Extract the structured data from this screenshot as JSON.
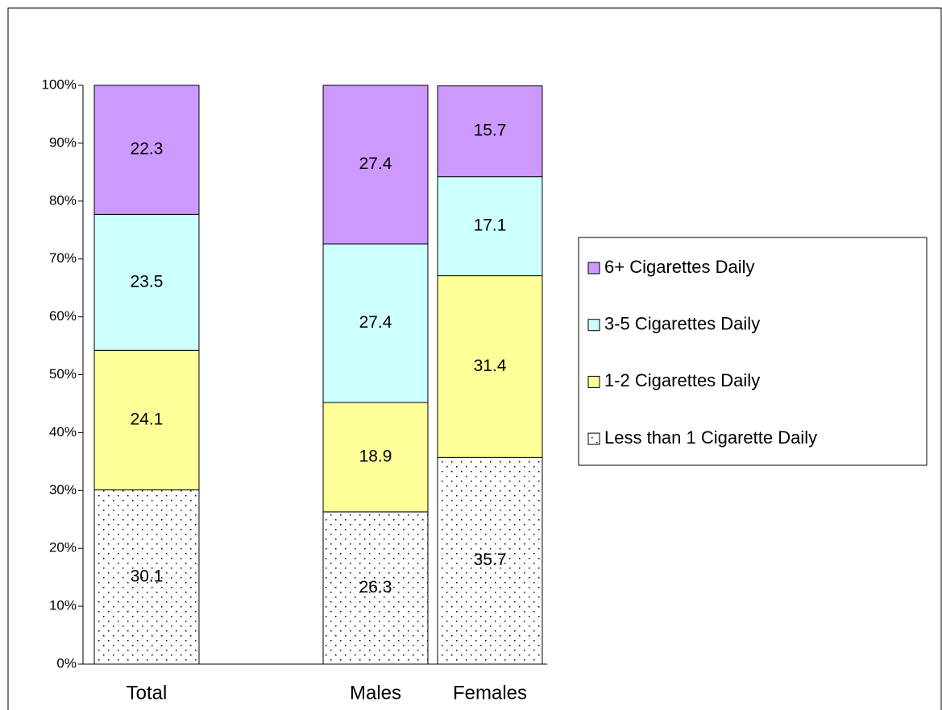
{
  "chart_data": {
    "type": "stacked_bar",
    "categories": [
      "Total",
      null,
      "Males",
      "Females"
    ],
    "series": [
      {
        "name": "Less than 1 Cigarette Daily",
        "color": "#ffffff",
        "pattern": "dots",
        "values": [
          30.1,
          null,
          26.3,
          35.7
        ]
      },
      {
        "name": "1-2 Cigarettes Daily",
        "color": "#ffff99",
        "values": [
          24.1,
          null,
          18.9,
          31.4
        ]
      },
      {
        "name": "3-5 Cigarettes Daily",
        "color": "#ccffff",
        "values": [
          23.5,
          null,
          27.4,
          17.1
        ]
      },
      {
        "name": "6+ Cigarettes Daily",
        "color": "#cc99ff",
        "values": [
          22.3,
          null,
          27.4,
          15.7
        ]
      }
    ],
    "ylim": [
      0,
      100
    ],
    "yticks": [
      {
        "value": 0,
        "label": "0%"
      },
      {
        "value": 10,
        "label": "10%"
      },
      {
        "value": 20,
        "label": "20%"
      },
      {
        "value": 30,
        "label": "30%"
      },
      {
        "value": 40,
        "label": "40%"
      },
      {
        "value": 50,
        "label": "50%"
      },
      {
        "value": 60,
        "label": "60%"
      },
      {
        "value": 70,
        "label": "70%"
      },
      {
        "value": 80,
        "label": "80%"
      },
      {
        "value": 90,
        "label": "90%"
      },
      {
        "value": 100,
        "label": "100%"
      }
    ],
    "legend": "right"
  }
}
